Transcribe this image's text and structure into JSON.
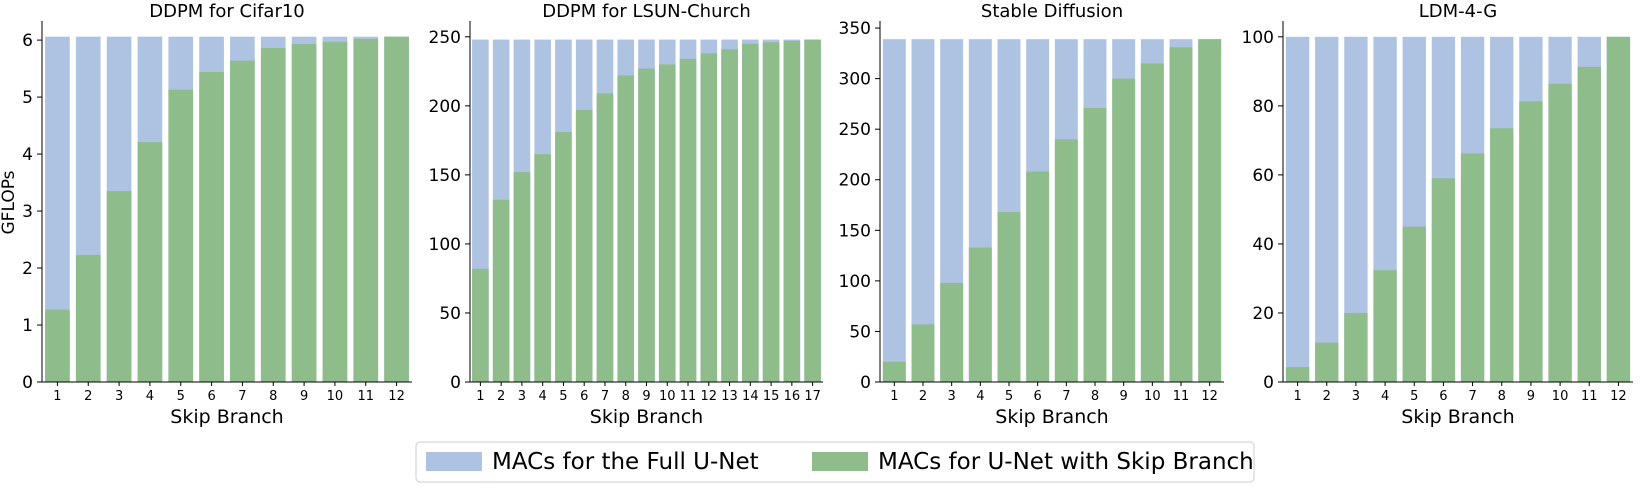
{
  "chart_data": [
    {
      "type": "bar",
      "title": "DDPM for Cifar10",
      "xlabel": "Skip Branch",
      "ylabel": "GFLOPs",
      "categories": [
        "1",
        "2",
        "3",
        "4",
        "5",
        "6",
        "7",
        "8",
        "9",
        "10",
        "11",
        "12"
      ],
      "ylim": [
        0,
        6.3
      ],
      "yticks": [
        0,
        1,
        2,
        3,
        4,
        5,
        6
      ],
      "series": [
        {
          "name": "MACs for the Full U-Net",
          "values": [
            6.06,
            6.06,
            6.06,
            6.06,
            6.06,
            6.06,
            6.06,
            6.06,
            6.06,
            6.06,
            6.06,
            6.06
          ]
        },
        {
          "name": "MACs for U-Net with Skip Branch",
          "values": [
            1.27,
            2.23,
            3.35,
            4.21,
            5.13,
            5.44,
            5.64,
            5.86,
            5.93,
            5.97,
            6.02,
            6.06
          ]
        }
      ]
    },
    {
      "type": "bar",
      "title": "DDPM for LSUN-Church",
      "xlabel": "Skip Branch",
      "ylabel": "",
      "categories": [
        "1",
        "2",
        "3",
        "4",
        "5",
        "6",
        "7",
        "8",
        "9",
        "10",
        "11",
        "12",
        "13",
        "14",
        "15",
        "16",
        "17"
      ],
      "ylim": [
        0,
        260
      ],
      "yticks": [
        0,
        50,
        100,
        150,
        200,
        250
      ],
      "series": [
        {
          "name": "MACs for the Full U-Net",
          "values": [
            248,
            248,
            248,
            248,
            248,
            248,
            248,
            248,
            248,
            248,
            248,
            248,
            248,
            248,
            248,
            248,
            248
          ]
        },
        {
          "name": "MACs for U-Net with Skip Branch",
          "values": [
            82,
            132,
            152,
            165,
            181,
            197,
            209,
            222,
            227,
            230,
            234,
            238,
            241,
            245,
            246,
            247,
            248
          ]
        }
      ]
    },
    {
      "type": "bar",
      "title": "Stable Diffusion",
      "xlabel": "Skip Branch",
      "ylabel": "",
      "categories": [
        "1",
        "2",
        "3",
        "4",
        "5",
        "6",
        "7",
        "8",
        "9",
        "10",
        "11",
        "12"
      ],
      "ylim": [
        0,
        355
      ],
      "yticks": [
        0,
        50,
        100,
        150,
        200,
        250,
        300,
        350
      ],
      "series": [
        {
          "name": "MACs for the Full U-Net",
          "values": [
            339,
            339,
            339,
            339,
            339,
            339,
            339,
            339,
            339,
            339,
            339,
            339
          ]
        },
        {
          "name": "MACs for U-Net with Skip Branch",
          "values": [
            20,
            57,
            98,
            133,
            168,
            208,
            240,
            271,
            300,
            315,
            331,
            339
          ]
        }
      ]
    },
    {
      "type": "bar",
      "title": "LDM-4-G",
      "xlabel": "Skip Branch",
      "ylabel": "",
      "categories": [
        "1",
        "2",
        "3",
        "4",
        "5",
        "6",
        "7",
        "8",
        "9",
        "10",
        "11",
        "12"
      ],
      "ylim": [
        0,
        104
      ],
      "yticks": [
        0,
        20,
        40,
        60,
        80,
        100
      ],
      "series": [
        {
          "name": "MACs for the Full U-Net",
          "values": [
            100,
            100,
            100,
            100,
            100,
            100,
            100,
            100,
            100,
            100,
            100,
            100
          ]
        },
        {
          "name": "MACs for U-Net with Skip Branch",
          "values": [
            4.3,
            11.4,
            20,
            32.4,
            45,
            59,
            66.2,
            73.5,
            81.3,
            86.4,
            91.3,
            100
          ]
        }
      ]
    }
  ],
  "legend": {
    "placement": "bottom-center",
    "items": [
      {
        "label": "MACs for the Full U-Net",
        "color": "#aec3e1"
      },
      {
        "label": "MACs for U-Net with Skip Branch",
        "color": "#8fbc8b"
      }
    ]
  },
  "colors": {
    "full": "#aec3e1",
    "skip": "#8fbc8b",
    "axis": "#000000"
  }
}
